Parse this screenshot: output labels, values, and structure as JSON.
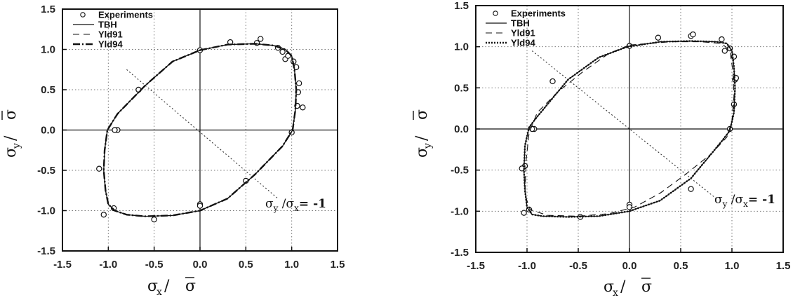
{
  "chart_data": [
    {
      "type": "line",
      "title": "",
      "xlim": [
        -1.5,
        1.5
      ],
      "ylim": [
        -1.5,
        1.5
      ],
      "xticks": [
        "-1.5",
        "-1.0",
        "-0.5",
        "0.0",
        "0.5",
        "1.0",
        "1.5"
      ],
      "yticks": [
        "-1.5",
        "-1.0",
        "-0.5",
        "0.0",
        "0.5",
        "1.0",
        "1.5"
      ],
      "grid": true,
      "legend_position": "top-left",
      "xlabel": {
        "main": "σ",
        "sub": "x",
        "sep": " / ",
        "over": "σ"
      },
      "ylabel": {
        "main": "σ",
        "sub": "y",
        "sep": " / ",
        "over": "σ"
      },
      "annotation": {
        "main": "σ",
        "sub1": "y",
        "mid": " /σ",
        "sub2": "x",
        "tail": "= -1"
      },
      "series": [
        {
          "name": "Experiments",
          "style": "marker",
          "points": [
            [
              0.0,
              0.99
            ],
            [
              0.33,
              1.09
            ],
            [
              0.62,
              1.08
            ],
            [
              0.66,
              1.13
            ],
            [
              0.85,
              1.02
            ],
            [
              0.9,
              0.97
            ],
            [
              0.93,
              0.88
            ],
            [
              0.96,
              0.92
            ],
            [
              1.02,
              0.85
            ],
            [
              1.05,
              0.78
            ],
            [
              1.08,
              0.58
            ],
            [
              1.07,
              0.47
            ],
            [
              1.12,
              0.28
            ],
            [
              1.06,
              0.3
            ],
            [
              1.0,
              -0.03
            ],
            [
              -0.67,
              0.5
            ],
            [
              -0.9,
              0.0
            ],
            [
              -0.93,
              0.0
            ],
            [
              -1.1,
              -0.48
            ],
            [
              -1.05,
              -1.05
            ],
            [
              -0.94,
              -0.97
            ],
            [
              -0.5,
              -1.11
            ],
            [
              0.0,
              -0.92
            ],
            [
              0.0,
              -0.94
            ],
            [
              0.5,
              -0.63
            ]
          ]
        },
        {
          "name": "TBH",
          "style": "solid",
          "points": [
            [
              0.0,
              0.99
            ],
            [
              0.3,
              1.06
            ],
            [
              0.6,
              1.07
            ],
            [
              0.8,
              1.05
            ],
            [
              0.93,
              1.0
            ],
            [
              1.0,
              0.92
            ],
            [
              1.03,
              0.75
            ],
            [
              1.05,
              0.5
            ],
            [
              1.04,
              0.25
            ],
            [
              1.01,
              0.0
            ],
            [
              0.9,
              -0.2
            ],
            [
              0.6,
              -0.55
            ],
            [
              0.3,
              -0.85
            ],
            [
              0.0,
              -1.0
            ],
            [
              -0.3,
              -1.06
            ],
            [
              -0.6,
              -1.07
            ],
            [
              -0.8,
              -1.05
            ],
            [
              -0.93,
              -1.0
            ],
            [
              -1.0,
              -0.92
            ],
            [
              -1.03,
              -0.75
            ],
            [
              -1.05,
              -0.5
            ],
            [
              -1.04,
              -0.25
            ],
            [
              -1.01,
              0.0
            ],
            [
              -0.9,
              0.2
            ],
            [
              -0.6,
              0.55
            ],
            [
              -0.3,
              0.85
            ],
            [
              0.0,
              0.99
            ]
          ]
        },
        {
          "name": "Yld91",
          "style": "dashed",
          "points": [
            [
              0.0,
              0.99
            ],
            [
              0.3,
              1.06
            ],
            [
              0.6,
              1.07
            ],
            [
              0.8,
              1.05
            ],
            [
              0.93,
              1.0
            ],
            [
              1.0,
              0.92
            ],
            [
              1.03,
              0.75
            ],
            [
              1.05,
              0.5
            ],
            [
              1.04,
              0.25
            ],
            [
              1.01,
              0.0
            ],
            [
              0.9,
              -0.2
            ],
            [
              0.6,
              -0.55
            ],
            [
              0.3,
              -0.85
            ],
            [
              0.0,
              -1.0
            ],
            [
              -0.3,
              -1.06
            ],
            [
              -0.6,
              -1.07
            ],
            [
              -0.8,
              -1.05
            ],
            [
              -0.93,
              -1.0
            ],
            [
              -1.0,
              -0.92
            ],
            [
              -1.03,
              -0.75
            ],
            [
              -1.05,
              -0.5
            ],
            [
              -1.04,
              -0.25
            ],
            [
              -1.01,
              0.0
            ],
            [
              -0.9,
              0.2
            ],
            [
              -0.6,
              0.55
            ],
            [
              -0.3,
              0.85
            ],
            [
              0.0,
              0.99
            ]
          ]
        },
        {
          "name": "Yld94",
          "style": "dashdot",
          "points": [
            [
              0.0,
              0.99
            ],
            [
              0.3,
              1.06
            ],
            [
              0.6,
              1.07
            ],
            [
              0.8,
              1.05
            ],
            [
              0.93,
              1.0
            ],
            [
              1.0,
              0.92
            ],
            [
              1.03,
              0.75
            ],
            [
              1.05,
              0.5
            ],
            [
              1.04,
              0.25
            ],
            [
              1.01,
              0.0
            ],
            [
              0.9,
              -0.2
            ],
            [
              0.6,
              -0.55
            ],
            [
              0.3,
              -0.85
            ],
            [
              0.0,
              -1.0
            ],
            [
              -0.3,
              -1.06
            ],
            [
              -0.6,
              -1.07
            ],
            [
              -0.8,
              -1.05
            ],
            [
              -0.93,
              -1.0
            ],
            [
              -1.0,
              -0.92
            ],
            [
              -1.03,
              -0.75
            ],
            [
              -1.05,
              -0.5
            ],
            [
              -1.04,
              -0.25
            ],
            [
              -1.01,
              0.0
            ],
            [
              -0.9,
              0.2
            ],
            [
              -0.6,
              0.55
            ],
            [
              -0.3,
              0.85
            ],
            [
              0.0,
              0.99
            ]
          ]
        },
        {
          "name": "",
          "style": "diagonal",
          "points": [
            [
              -0.8,
              0.75
            ],
            [
              0.85,
              -0.85
            ]
          ]
        }
      ]
    },
    {
      "type": "line",
      "title": "",
      "xlim": [
        -1.5,
        1.5
      ],
      "ylim": [
        -1.5,
        1.5
      ],
      "xticks": [
        "-1.5",
        "-1.0",
        "-0.5",
        "0.0",
        "0.5",
        "1.0",
        "1.5"
      ],
      "yticks": [
        "-1.5",
        "-1.0",
        "-0.5",
        "0.0",
        "0.5",
        "1.0",
        "1.5"
      ],
      "grid": true,
      "legend_position": "top-left",
      "xlabel": {
        "main": "σ",
        "sub": "x",
        "sep": " / ",
        "over": "σ"
      },
      "ylabel": {
        "main": "σ",
        "sub": "y",
        "sep": " / ",
        "over": "σ"
      },
      "annotation": {
        "main": "σ",
        "sub1": "y",
        "mid": " /σ",
        "sub2": "x",
        "tail": "= -1"
      },
      "series": [
        {
          "name": "Experiments",
          "style": "marker",
          "points": [
            [
              0.0,
              1.01
            ],
            [
              0.28,
              1.11
            ],
            [
              0.6,
              1.13
            ],
            [
              0.62,
              1.15
            ],
            [
              0.9,
              1.09
            ],
            [
              0.93,
              0.95
            ],
            [
              0.98,
              0.98
            ],
            [
              1.02,
              0.88
            ],
            [
              1.03,
              0.6
            ],
            [
              1.04,
              0.62
            ],
            [
              1.02,
              0.3
            ],
            [
              0.98,
              0.0
            ],
            [
              -0.75,
              0.58
            ],
            [
              -0.93,
              0.0
            ],
            [
              -0.95,
              0.0
            ],
            [
              -1.02,
              -0.45
            ],
            [
              -1.05,
              -0.48
            ],
            [
              -1.03,
              -1.02
            ],
            [
              -0.98,
              -0.98
            ],
            [
              -0.48,
              -1.07
            ],
            [
              0.0,
              -0.92
            ],
            [
              0.0,
              -0.95
            ],
            [
              0.6,
              -0.73
            ]
          ]
        },
        {
          "name": "TBH",
          "style": "solid",
          "points": [
            [
              -0.02,
              1.0
            ],
            [
              0.3,
              1.06
            ],
            [
              0.6,
              1.07
            ],
            [
              0.85,
              1.06
            ],
            [
              0.95,
              1.04
            ],
            [
              1.0,
              0.95
            ],
            [
              1.02,
              0.75
            ],
            [
              1.03,
              0.5
            ],
            [
              1.02,
              0.2
            ],
            [
              0.98,
              -0.02
            ],
            [
              0.9,
              -0.15
            ],
            [
              0.6,
              -0.6
            ],
            [
              0.3,
              -0.87
            ],
            [
              0.0,
              -1.0
            ],
            [
              -0.3,
              -1.06
            ],
            [
              -0.6,
              -1.07
            ],
            [
              -0.85,
              -1.06
            ],
            [
              -0.95,
              -1.04
            ],
            [
              -1.0,
              -0.95
            ],
            [
              -1.02,
              -0.75
            ],
            [
              -1.03,
              -0.5
            ],
            [
              -1.02,
              -0.2
            ],
            [
              -0.98,
              0.02
            ],
            [
              -0.9,
              0.15
            ],
            [
              -0.6,
              0.6
            ],
            [
              -0.3,
              0.87
            ],
            [
              -0.02,
              1.0
            ]
          ]
        },
        {
          "name": "Yld91",
          "style": "dashed",
          "points": [
            [
              0.0,
              1.02
            ],
            [
              0.4,
              1.06
            ],
            [
              0.7,
              1.06
            ],
            [
              0.9,
              1.04
            ],
            [
              0.98,
              0.95
            ],
            [
              1.01,
              0.7
            ],
            [
              1.02,
              0.4
            ],
            [
              1.0,
              0.1
            ],
            [
              0.95,
              -0.1
            ],
            [
              0.8,
              -0.3
            ],
            [
              0.55,
              -0.55
            ],
            [
              0.3,
              -0.78
            ],
            [
              0.05,
              -0.95
            ],
            [
              -0.2,
              -1.03
            ],
            [
              -0.5,
              -1.06
            ],
            [
              -0.8,
              -1.05
            ],
            [
              -0.97,
              -0.98
            ],
            [
              -1.02,
              -0.8
            ],
            [
              -1.01,
              -0.4
            ],
            [
              -0.98,
              -0.05
            ],
            [
              -0.9,
              0.2
            ],
            [
              -0.7,
              0.45
            ],
            [
              -0.45,
              0.7
            ],
            [
              -0.2,
              0.92
            ],
            [
              0.0,
              1.02
            ]
          ]
        },
        {
          "name": "Yld94",
          "style": "dotted",
          "points": [
            [
              -0.02,
              1.0
            ],
            [
              0.3,
              1.06
            ],
            [
              0.6,
              1.07
            ],
            [
              0.85,
              1.06
            ],
            [
              0.95,
              1.04
            ],
            [
              1.0,
              0.95
            ],
            [
              1.02,
              0.75
            ],
            [
              1.03,
              0.5
            ],
            [
              1.02,
              0.2
            ],
            [
              0.98,
              -0.02
            ],
            [
              0.9,
              -0.15
            ],
            [
              0.6,
              -0.6
            ],
            [
              0.3,
              -0.87
            ],
            [
              0.0,
              -1.0
            ],
            [
              -0.3,
              -1.06
            ],
            [
              -0.6,
              -1.07
            ],
            [
              -0.85,
              -1.06
            ],
            [
              -0.95,
              -1.04
            ],
            [
              -1.0,
              -0.95
            ],
            [
              -1.02,
              -0.75
            ],
            [
              -1.03,
              -0.5
            ],
            [
              -1.02,
              -0.2
            ],
            [
              -0.98,
              0.02
            ],
            [
              -0.9,
              0.15
            ],
            [
              -0.6,
              0.6
            ],
            [
              -0.3,
              0.87
            ],
            [
              -0.02,
              1.0
            ]
          ]
        },
        {
          "name": "",
          "style": "diagonal",
          "points": [
            [
              -0.95,
              0.95
            ],
            [
              0.85,
              -0.85
            ]
          ]
        }
      ]
    }
  ]
}
